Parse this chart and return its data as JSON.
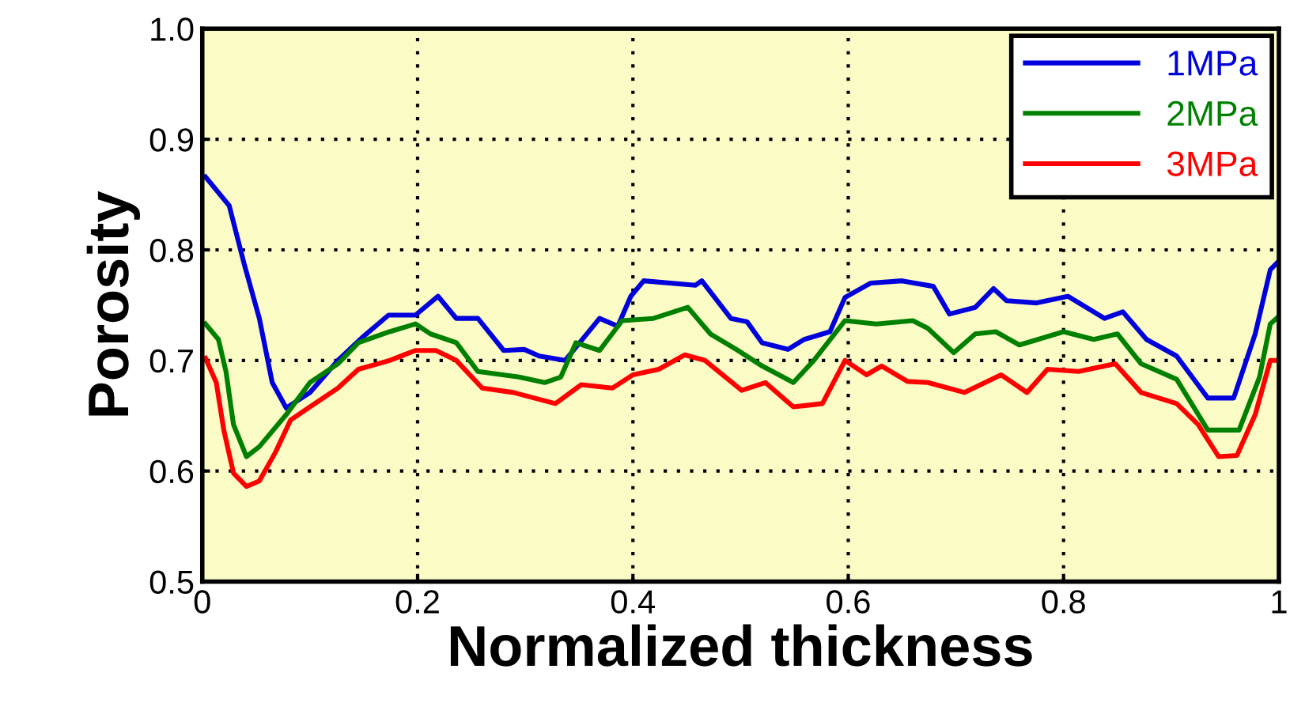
{
  "chart_data": {
    "type": "line",
    "xlabel": "Normalized thickness",
    "ylabel": "Porosity",
    "xlim": [
      0,
      1
    ],
    "ylim": [
      0.5,
      1.0
    ],
    "xticks": [
      0,
      0.2,
      0.4,
      0.6,
      0.8,
      1
    ],
    "yticks": [
      0.5,
      0.6,
      0.7,
      0.8,
      0.9,
      {
        "value": 1.0,
        "label": "1.0"
      }
    ],
    "grid": true,
    "legend": "top right",
    "marker": "none",
    "line_style": "solid",
    "series": [
      {
        "name": "1MPa",
        "color": "#0000dd",
        "x": [
          0.003,
          0.025,
          0.039,
          0.053,
          0.065,
          0.078,
          0.1,
          0.126,
          0.15,
          0.173,
          0.198,
          0.219,
          0.236,
          0.256,
          0.28,
          0.299,
          0.313,
          0.337,
          0.369,
          0.386,
          0.398,
          0.41,
          0.458,
          0.464,
          0.491,
          0.506,
          0.52,
          0.544,
          0.559,
          0.583,
          0.597,
          0.621,
          0.65,
          0.679,
          0.694,
          0.718,
          0.735,
          0.747,
          0.775,
          0.804,
          0.838,
          0.855,
          0.877,
          0.905,
          0.934,
          0.958,
          0.978,
          0.992,
          1.0
        ],
        "values": [
          0.866,
          0.84,
          0.787,
          0.738,
          0.68,
          0.657,
          0.671,
          0.7,
          0.722,
          0.741,
          0.741,
          0.758,
          0.738,
          0.738,
          0.709,
          0.71,
          0.704,
          0.7,
          0.738,
          0.731,
          0.758,
          0.772,
          0.768,
          0.772,
          0.738,
          0.735,
          0.716,
          0.71,
          0.719,
          0.726,
          0.757,
          0.77,
          0.772,
          0.767,
          0.742,
          0.748,
          0.765,
          0.754,
          0.752,
          0.758,
          0.738,
          0.744,
          0.719,
          0.704,
          0.666,
          0.666,
          0.724,
          0.782,
          0.79
        ]
      },
      {
        "name": "2MPa",
        "color": "#008000",
        "x": [
          0.003,
          0.015,
          0.022,
          0.029,
          0.041,
          0.053,
          0.078,
          0.1,
          0.126,
          0.145,
          0.174,
          0.198,
          0.212,
          0.236,
          0.256,
          0.294,
          0.318,
          0.333,
          0.347,
          0.369,
          0.39,
          0.419,
          0.451,
          0.472,
          0.496,
          0.52,
          0.549,
          0.568,
          0.597,
          0.626,
          0.66,
          0.674,
          0.698,
          0.718,
          0.737,
          0.759,
          0.8,
          0.828,
          0.85,
          0.872,
          0.905,
          0.934,
          0.963,
          0.982,
          0.992,
          1.0
        ],
        "values": [
          0.733,
          0.719,
          0.69,
          0.642,
          0.613,
          0.622,
          0.651,
          0.68,
          0.697,
          0.716,
          0.726,
          0.733,
          0.724,
          0.716,
          0.69,
          0.685,
          0.68,
          0.685,
          0.716,
          0.709,
          0.736,
          0.738,
          0.748,
          0.724,
          0.71,
          0.695,
          0.68,
          0.7,
          0.736,
          0.733,
          0.736,
          0.729,
          0.707,
          0.724,
          0.726,
          0.714,
          0.726,
          0.719,
          0.724,
          0.697,
          0.683,
          0.637,
          0.637,
          0.685,
          0.733,
          0.74
        ]
      },
      {
        "name": "3MPa",
        "color": "#ff0000",
        "x": [
          0.003,
          0.013,
          0.02,
          0.029,
          0.041,
          0.053,
          0.068,
          0.082,
          0.1,
          0.126,
          0.145,
          0.174,
          0.198,
          0.217,
          0.236,
          0.26,
          0.289,
          0.328,
          0.352,
          0.381,
          0.4,
          0.424,
          0.448,
          0.467,
          0.501,
          0.523,
          0.549,
          0.576,
          0.597,
          0.617,
          0.631,
          0.655,
          0.674,
          0.708,
          0.742,
          0.766,
          0.785,
          0.814,
          0.848,
          0.872,
          0.905,
          0.925,
          0.944,
          0.961,
          0.978,
          0.992,
          1.0
        ],
        "values": [
          0.702,
          0.68,
          0.637,
          0.598,
          0.586,
          0.591,
          0.617,
          0.646,
          0.658,
          0.675,
          0.692,
          0.7,
          0.709,
          0.709,
          0.7,
          0.675,
          0.671,
          0.661,
          0.678,
          0.675,
          0.687,
          0.692,
          0.705,
          0.7,
          0.673,
          0.68,
          0.658,
          0.661,
          0.7,
          0.687,
          0.695,
          0.681,
          0.68,
          0.671,
          0.687,
          0.671,
          0.692,
          0.69,
          0.697,
          0.671,
          0.661,
          0.642,
          0.613,
          0.614,
          0.651,
          0.7,
          0.7
        ]
      }
    ]
  }
}
